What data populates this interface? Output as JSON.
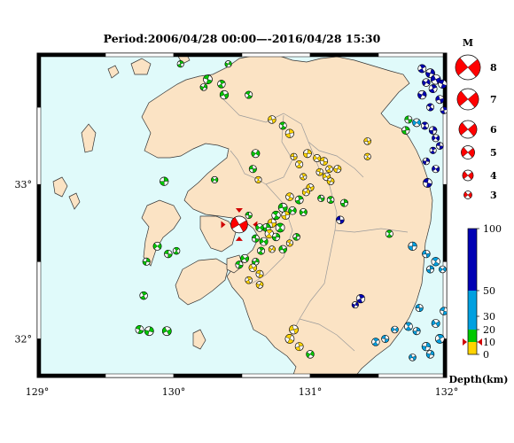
{
  "title": "Period:2006/04/28 00:00—-2016/04/28 15:30",
  "map": {
    "lon_min": 129,
    "lon_max": 132,
    "lat_min": 31.75,
    "lat_max": 33.85,
    "lon_ticks": [
      "129°",
      "130°",
      "131°",
      "132°"
    ],
    "lat_ticks": [
      "33°",
      "32°"
    ],
    "colors": {
      "sea": "#e0fafa",
      "land": "#fbe3c4",
      "border": "#9a9a9a"
    }
  },
  "magnitude_legend": {
    "header": "M",
    "items": [
      {
        "label": "8",
        "mag": 8
      },
      {
        "label": "7",
        "mag": 7
      },
      {
        "label": "6",
        "mag": 6
      },
      {
        "label": "5",
        "mag": 5
      },
      {
        "label": "4",
        "mag": 4
      },
      {
        "label": "3",
        "mag": 3
      }
    ],
    "color": "#ff0000"
  },
  "depth_scale": {
    "title": "Depth(km)",
    "labels": [
      "100",
      "50",
      "30",
      "20",
      "10",
      "0"
    ],
    "marker_depth": 10,
    "bands": [
      {
        "from": 0,
        "to": 10,
        "color": "#ffd400"
      },
      {
        "from": 10,
        "to": 20,
        "color": "#00c800"
      },
      {
        "from": 20,
        "to": 50,
        "color": "#00a0e0"
      },
      {
        "from": 50,
        "to": 100,
        "color": "#0000b4"
      }
    ]
  },
  "events": [
    {
      "lon": 130.48,
      "lat": 32.74,
      "mag": 5.6,
      "depth": 10,
      "highlight": true
    },
    {
      "lon": 130.25,
      "lat": 33.68,
      "mag": 3.6,
      "depth": 15
    },
    {
      "lon": 130.35,
      "lat": 33.65,
      "mag": 3.3,
      "depth": 15
    },
    {
      "lon": 130.22,
      "lat": 33.63,
      "mag": 3.1,
      "depth": 15
    },
    {
      "lon": 130.37,
      "lat": 33.58,
      "mag": 3.5,
      "depth": 12
    },
    {
      "lon": 130.55,
      "lat": 33.58,
      "mag": 3.2,
      "depth": 15
    },
    {
      "lon": 130.05,
      "lat": 33.78,
      "mag": 3.0,
      "depth": 15
    },
    {
      "lon": 130.4,
      "lat": 33.78,
      "mag": 3.0,
      "depth": 15
    },
    {
      "lon": 130.72,
      "lat": 33.42,
      "mag": 3.3,
      "depth": 8
    },
    {
      "lon": 130.8,
      "lat": 33.38,
      "mag": 3.2,
      "depth": 12
    },
    {
      "lon": 130.85,
      "lat": 33.33,
      "mag": 3.5,
      "depth": 8
    },
    {
      "lon": 130.6,
      "lat": 33.2,
      "mag": 3.4,
      "depth": 14
    },
    {
      "lon": 130.58,
      "lat": 33.1,
      "mag": 3.2,
      "depth": 18
    },
    {
      "lon": 130.62,
      "lat": 33.03,
      "mag": 3.0,
      "depth": 5
    },
    {
      "lon": 129.93,
      "lat": 33.02,
      "mag": 3.5,
      "depth": 15
    },
    {
      "lon": 130.3,
      "lat": 33.03,
      "mag": 3.0,
      "depth": 14
    },
    {
      "lon": 130.88,
      "lat": 33.18,
      "mag": 3.0,
      "depth": 8
    },
    {
      "lon": 130.92,
      "lat": 33.13,
      "mag": 3.2,
      "depth": 5
    },
    {
      "lon": 130.98,
      "lat": 33.2,
      "mag": 3.4,
      "depth": 6
    },
    {
      "lon": 131.05,
      "lat": 33.17,
      "mag": 3.2,
      "depth": 8
    },
    {
      "lon": 131.1,
      "lat": 33.15,
      "mag": 3.3,
      "depth": 5
    },
    {
      "lon": 131.14,
      "lat": 33.1,
      "mag": 3.1,
      "depth": 7
    },
    {
      "lon": 131.2,
      "lat": 33.1,
      "mag": 3.2,
      "depth": 6
    },
    {
      "lon": 131.12,
      "lat": 33.05,
      "mag": 3.3,
      "depth": 8
    },
    {
      "lon": 131.07,
      "lat": 33.08,
      "mag": 3.1,
      "depth": 5
    },
    {
      "lon": 130.95,
      "lat": 33.05,
      "mag": 3.0,
      "depth": 9
    },
    {
      "lon": 131.15,
      "lat": 33.02,
      "mag": 3.1,
      "depth": 6
    },
    {
      "lon": 131.0,
      "lat": 32.98,
      "mag": 3.2,
      "depth": 9
    },
    {
      "lon": 130.85,
      "lat": 32.92,
      "mag": 3.3,
      "depth": 7
    },
    {
      "lon": 130.92,
      "lat": 32.9,
      "mag": 3.4,
      "depth": 12
    },
    {
      "lon": 130.97,
      "lat": 32.95,
      "mag": 3.2,
      "depth": 8
    },
    {
      "lon": 130.8,
      "lat": 32.85,
      "mag": 3.6,
      "depth": 12
    },
    {
      "lon": 130.75,
      "lat": 32.8,
      "mag": 3.5,
      "depth": 14
    },
    {
      "lon": 130.82,
      "lat": 32.8,
      "mag": 3.4,
      "depth": 8
    },
    {
      "lon": 130.87,
      "lat": 32.83,
      "mag": 3.3,
      "depth": 12
    },
    {
      "lon": 130.72,
      "lat": 32.75,
      "mag": 3.5,
      "depth": 6
    },
    {
      "lon": 130.78,
      "lat": 32.72,
      "mag": 3.6,
      "depth": 12
    },
    {
      "lon": 130.68,
      "lat": 32.72,
      "mag": 3.4,
      "depth": 14
    },
    {
      "lon": 130.63,
      "lat": 32.72,
      "mag": 3.3,
      "depth": 15
    },
    {
      "lon": 130.55,
      "lat": 32.8,
      "mag": 3.0,
      "depth": 15
    },
    {
      "lon": 130.7,
      "lat": 32.68,
      "mag": 3.5,
      "depth": 8
    },
    {
      "lon": 130.75,
      "lat": 32.66,
      "mag": 3.3,
      "depth": 12
    },
    {
      "lon": 130.66,
      "lat": 32.63,
      "mag": 3.4,
      "depth": 15
    },
    {
      "lon": 130.6,
      "lat": 32.65,
      "mag": 3.2,
      "depth": 12
    },
    {
      "lon": 130.64,
      "lat": 32.57,
      "mag": 3.2,
      "depth": 15
    },
    {
      "lon": 130.6,
      "lat": 32.5,
      "mag": 3.1,
      "depth": 15
    },
    {
      "lon": 130.58,
      "lat": 32.46,
      "mag": 3.3,
      "depth": 8
    },
    {
      "lon": 130.63,
      "lat": 32.42,
      "mag": 3.2,
      "depth": 8
    },
    {
      "lon": 130.55,
      "lat": 32.38,
      "mag": 3.1,
      "depth": 8
    },
    {
      "lon": 130.63,
      "lat": 32.35,
      "mag": 3.1,
      "depth": 6
    },
    {
      "lon": 130.8,
      "lat": 32.58,
      "mag": 3.3,
      "depth": 15
    },
    {
      "lon": 130.85,
      "lat": 32.62,
      "mag": 3.0,
      "depth": 8
    },
    {
      "lon": 130.9,
      "lat": 32.66,
      "mag": 3.1,
      "depth": 12
    },
    {
      "lon": 130.72,
      "lat": 32.58,
      "mag": 3.0,
      "depth": 8
    },
    {
      "lon": 131.08,
      "lat": 32.91,
      "mag": 3.0,
      "depth": 15
    },
    {
      "lon": 131.15,
      "lat": 32.9,
      "mag": 3.1,
      "depth": 15
    },
    {
      "lon": 131.25,
      "lat": 32.88,
      "mag": 3.2,
      "depth": 15
    },
    {
      "lon": 130.95,
      "lat": 32.82,
      "mag": 3.2,
      "depth": 14
    },
    {
      "lon": 131.22,
      "lat": 32.77,
      "mag": 3.3,
      "depth": 60
    },
    {
      "lon": 131.58,
      "lat": 32.68,
      "mag": 3.2,
      "depth": 12
    },
    {
      "lon": 131.75,
      "lat": 32.6,
      "mag": 3.5,
      "depth": 30
    },
    {
      "lon": 129.88,
      "lat": 32.6,
      "mag": 3.4,
      "depth": 12
    },
    {
      "lon": 129.96,
      "lat": 32.55,
      "mag": 3.3,
      "depth": 14
    },
    {
      "lon": 130.02,
      "lat": 32.57,
      "mag": 3.1,
      "depth": 15
    },
    {
      "lon": 129.8,
      "lat": 32.5,
      "mag": 3.2,
      "depth": 15
    },
    {
      "lon": 130.52,
      "lat": 32.52,
      "mag": 3.4,
      "depth": 16
    },
    {
      "lon": 130.48,
      "lat": 32.48,
      "mag": 3.2,
      "depth": 15
    },
    {
      "lon": 129.78,
      "lat": 32.28,
      "mag": 3.3,
      "depth": 15
    },
    {
      "lon": 129.82,
      "lat": 32.05,
      "mag": 3.6,
      "depth": 12
    },
    {
      "lon": 129.95,
      "lat": 32.05,
      "mag": 3.6,
      "depth": 13
    },
    {
      "lon": 129.75,
      "lat": 32.06,
      "mag": 3.4,
      "depth": 14
    },
    {
      "lon": 131.37,
      "lat": 32.26,
      "mag": 3.5,
      "depth": 75
    },
    {
      "lon": 131.33,
      "lat": 32.22,
      "mag": 3.0,
      "depth": 60
    },
    {
      "lon": 130.88,
      "lat": 32.06,
      "mag": 3.6,
      "depth": 8
    },
    {
      "lon": 130.85,
      "lat": 32.0,
      "mag": 3.6,
      "depth": 5
    },
    {
      "lon": 130.92,
      "lat": 31.95,
      "mag": 3.4,
      "depth": 6
    },
    {
      "lon": 131.0,
      "lat": 31.9,
      "mag": 3.3,
      "depth": 12
    },
    {
      "lon": 131.42,
      "lat": 33.28,
      "mag": 3.1,
      "depth": 8
    },
    {
      "lon": 131.42,
      "lat": 33.18,
      "mag": 3.0,
      "depth": 5
    },
    {
      "lon": 131.7,
      "lat": 33.35,
      "mag": 3.3,
      "depth": 15
    },
    {
      "lon": 131.78,
      "lat": 33.4,
      "mag": 3.4,
      "depth": 25
    },
    {
      "lon": 131.72,
      "lat": 33.42,
      "mag": 3.2,
      "depth": 20
    },
    {
      "lon": 131.84,
      "lat": 33.38,
      "mag": 3.2,
      "depth": 65
    },
    {
      "lon": 131.9,
      "lat": 33.35,
      "mag": 3.3,
      "depth": 70
    },
    {
      "lon": 131.92,
      "lat": 33.3,
      "mag": 3.2,
      "depth": 75
    },
    {
      "lon": 131.95,
      "lat": 33.25,
      "mag": 3.1,
      "depth": 70
    },
    {
      "lon": 131.9,
      "lat": 33.22,
      "mag": 3.0,
      "depth": 65
    },
    {
      "lon": 131.85,
      "lat": 33.15,
      "mag": 3.1,
      "depth": 60
    },
    {
      "lon": 131.92,
      "lat": 33.1,
      "mag": 3.2,
      "depth": 70
    },
    {
      "lon": 131.86,
      "lat": 33.01,
      "mag": 3.6,
      "depth": 75
    },
    {
      "lon": 131.82,
      "lat": 33.75,
      "mag": 3.4,
      "depth": 80
    },
    {
      "lon": 131.88,
      "lat": 33.72,
      "mag": 3.6,
      "depth": 85
    },
    {
      "lon": 131.92,
      "lat": 33.68,
      "mag": 3.8,
      "depth": 80
    },
    {
      "lon": 131.97,
      "lat": 33.65,
      "mag": 3.5,
      "depth": 75
    },
    {
      "lon": 131.9,
      "lat": 33.62,
      "mag": 3.4,
      "depth": 70
    },
    {
      "lon": 131.82,
      "lat": 33.58,
      "mag": 3.5,
      "depth": 75
    },
    {
      "lon": 131.95,
      "lat": 33.55,
      "mag": 3.4,
      "depth": 70
    },
    {
      "lon": 131.88,
      "lat": 33.5,
      "mag": 3.2,
      "depth": 65
    },
    {
      "lon": 131.98,
      "lat": 33.48,
      "mag": 3.1,
      "depth": 60
    },
    {
      "lon": 131.85,
      "lat": 33.66,
      "mag": 3.3,
      "depth": 80
    },
    {
      "lon": 131.85,
      "lat": 32.55,
      "mag": 3.3,
      "depth": 45
    },
    {
      "lon": 131.92,
      "lat": 32.5,
      "mag": 3.5,
      "depth": 40
    },
    {
      "lon": 131.88,
      "lat": 32.45,
      "mag": 3.2,
      "depth": 50
    },
    {
      "lon": 131.97,
      "lat": 32.45,
      "mag": 3.1,
      "depth": 45
    },
    {
      "lon": 131.8,
      "lat": 32.2,
      "mag": 3.2,
      "depth": 35
    },
    {
      "lon": 131.72,
      "lat": 32.08,
      "mag": 3.4,
      "depth": 30
    },
    {
      "lon": 131.78,
      "lat": 32.05,
      "mag": 3.2,
      "depth": 35
    },
    {
      "lon": 131.62,
      "lat": 32.06,
      "mag": 3.1,
      "depth": 40
    },
    {
      "lon": 131.55,
      "lat": 32.0,
      "mag": 3.2,
      "depth": 35
    },
    {
      "lon": 131.48,
      "lat": 31.98,
      "mag": 3.3,
      "depth": 30
    },
    {
      "lon": 131.85,
      "lat": 31.95,
      "mag": 3.5,
      "depth": 40
    },
    {
      "lon": 131.92,
      "lat": 32.1,
      "mag": 3.4,
      "depth": 45
    },
    {
      "lon": 131.98,
      "lat": 32.18,
      "mag": 3.3,
      "depth": 40
    },
    {
      "lon": 131.95,
      "lat": 32.0,
      "mag": 3.6,
      "depth": 45
    },
    {
      "lon": 131.88,
      "lat": 31.9,
      "mag": 3.3,
      "depth": 40
    },
    {
      "lon": 131.75,
      "lat": 31.88,
      "mag": 3.1,
      "depth": 35
    }
  ]
}
